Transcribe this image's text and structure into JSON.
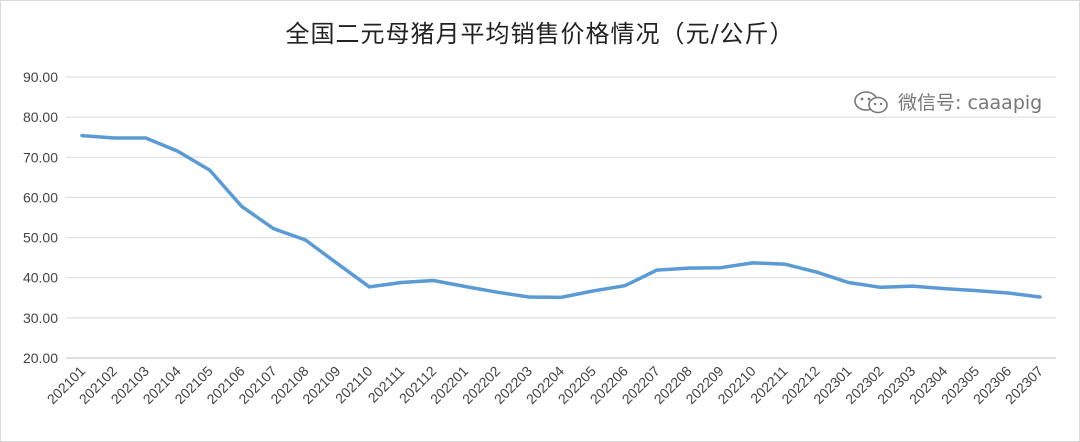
{
  "chart_data": {
    "type": "line",
    "title": "全国二元母猪月平均销售价格情况（元/公斤）",
    "ylim": [
      20,
      90
    ],
    "yticks": [
      "20.00",
      "30.00",
      "40.00",
      "50.00",
      "60.00",
      "70.00",
      "80.00",
      "90.00"
    ],
    "grid": true,
    "legend": "none",
    "color": "#5b9bd5",
    "categories": [
      "202101",
      "202102",
      "202103",
      "202104",
      "202105",
      "202106",
      "202107",
      "202108",
      "202109",
      "202110",
      "202111",
      "202112",
      "202201",
      "202202",
      "202203",
      "202204",
      "202205",
      "202206",
      "202207",
      "202208",
      "202209",
      "202210",
      "202211",
      "202212",
      "202301",
      "202302",
      "202303",
      "202304",
      "202305",
      "202306",
      "202307"
    ],
    "series": [
      {
        "values": [
          75.4,
          74.8,
          74.8,
          71.5,
          66.8,
          57.8,
          52.2,
          49.4,
          43.5,
          37.7,
          38.8,
          39.3,
          37.8,
          36.4,
          35.2,
          35.1,
          36.7,
          38.0,
          41.9,
          42.4,
          42.5,
          43.7,
          43.4,
          41.4,
          38.8,
          37.6,
          37.9,
          37.3,
          36.8,
          36.2,
          35.2
        ]
      }
    ]
  },
  "watermark": {
    "text": "微信号: caaapig",
    "icon": "wechat-icon"
  }
}
